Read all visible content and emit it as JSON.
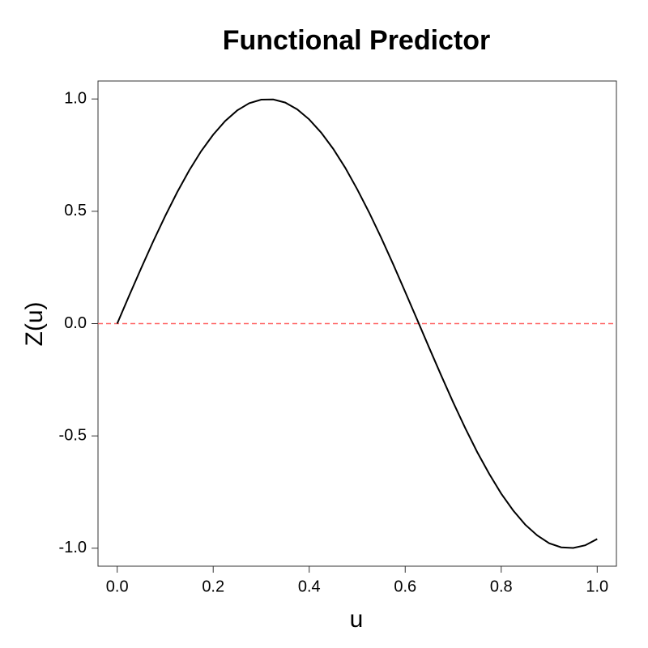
{
  "chart_data": {
    "type": "line",
    "title": "Functional Predictor",
    "x_label": "u",
    "y_label": "Z(u)",
    "x": [
      0,
      0.025,
      0.05,
      0.075,
      0.1,
      0.125,
      0.15,
      0.175,
      0.2,
      0.225,
      0.25,
      0.275,
      0.3,
      0.325,
      0.35,
      0.375,
      0.4,
      0.425,
      0.45,
      0.475,
      0.5,
      0.525,
      0.55,
      0.575,
      0.6,
      0.625,
      0.65,
      0.675,
      0.7,
      0.725,
      0.75,
      0.775,
      0.8,
      0.825,
      0.85,
      0.875,
      0.9,
      0.925,
      0.95,
      0.975,
      1
    ],
    "series": [
      {
        "color": "#000000",
        "values": [
          0,
          0.125,
          0.247,
          0.366,
          0.479,
          0.585,
          0.682,
          0.768,
          0.841,
          0.902,
          0.949,
          0.981,
          0.997,
          0.998,
          0.984,
          0.954,
          0.909,
          0.85,
          0.778,
          0.694,
          0.598,
          0.494,
          0.382,
          0.264,
          0.141,
          0.017,
          -0.108,
          -0.231,
          -0.351,
          -0.465,
          -0.572,
          -0.669,
          -0.757,
          -0.832,
          -0.895,
          -0.943,
          -0.978,
          -0.996,
          -0.999,
          -0.987,
          -0.959
        ]
      }
    ],
    "hline": {
      "value": 0,
      "color": "#ff6666"
    },
    "xlim": [
      -0.04,
      1.04
    ],
    "ylim": [
      -1.08,
      1.08
    ],
    "xticks": [
      {
        "value": 0,
        "label": "0.0"
      },
      0.2,
      0.4,
      0.6,
      0.8,
      {
        "value": 1,
        "label": "1.0"
      }
    ],
    "yticks": [
      {
        "value": -1,
        "label": "-1.0"
      },
      -0.5,
      {
        "value": 0,
        "label": "0.0"
      },
      0.5,
      {
        "value": 1,
        "label": "1.0"
      }
    ]
  }
}
